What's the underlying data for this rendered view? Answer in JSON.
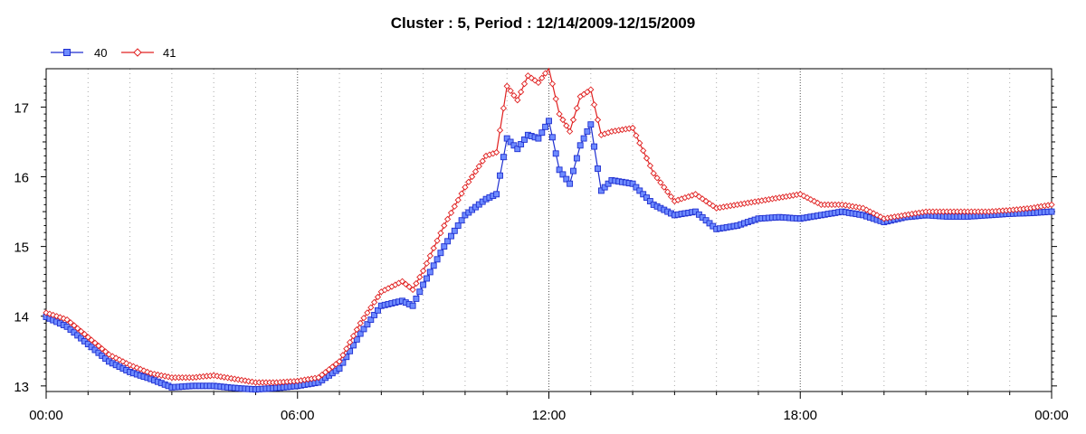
{
  "chart_data": {
    "type": "line",
    "title": "Cluster : 5, Period : 12/14/2009-12/15/2009",
    "xlabel": "",
    "ylabel": "",
    "x_unit": "hours",
    "xlim": [
      0,
      24
    ],
    "ylim": [
      12.92,
      17.55
    ],
    "x_ticks": [
      {
        "value": 0,
        "label": "00:00"
      },
      {
        "value": 6,
        "label": "06:00"
      },
      {
        "value": 12,
        "label": "12:00"
      },
      {
        "value": 18,
        "label": "18:00"
      },
      {
        "value": 24,
        "label": "00:00"
      }
    ],
    "y_ticks": [
      13,
      14,
      15,
      16,
      17
    ],
    "legend_position": "top-left",
    "grid": "dotted vertical lines every hour",
    "series": [
      {
        "name": "40",
        "color": "#1f2fd0",
        "marker": "square",
        "x": [
          0,
          0.5,
          1,
          1.5,
          2,
          2.5,
          3,
          3.5,
          4,
          4.5,
          5,
          5.5,
          6,
          6.5,
          7,
          7.5,
          8,
          8.5,
          8.75,
          9,
          9.5,
          10,
          10.5,
          10.75,
          11,
          11.25,
          11.5,
          11.75,
          12,
          12.25,
          12.5,
          12.75,
          13,
          13.25,
          13.5,
          14,
          14.5,
          15,
          15.5,
          16,
          16.5,
          17,
          17.5,
          18,
          18.5,
          19,
          19.5,
          20,
          20.5,
          21,
          21.5,
          22,
          22.5,
          23,
          23.5,
          24
        ],
        "values": [
          13.99,
          13.85,
          13.6,
          13.35,
          13.2,
          13.1,
          12.98,
          13.0,
          13.0,
          12.97,
          12.95,
          12.97,
          13.0,
          13.05,
          13.25,
          13.75,
          14.15,
          14.22,
          14.15,
          14.45,
          15.0,
          15.45,
          15.68,
          15.75,
          16.55,
          16.4,
          16.6,
          16.55,
          16.8,
          16.1,
          15.9,
          16.45,
          16.75,
          15.8,
          15.95,
          15.9,
          15.6,
          15.45,
          15.5,
          15.25,
          15.3,
          15.4,
          15.42,
          15.4,
          15.45,
          15.5,
          15.45,
          15.35,
          15.42,
          15.45,
          15.43,
          15.43,
          15.45,
          15.47,
          15.48,
          15.5
        ]
      },
      {
        "name": "41",
        "color": "#e02020",
        "marker": "diamond",
        "x": [
          0,
          0.5,
          1,
          1.5,
          2,
          2.5,
          3,
          3.5,
          4,
          4.5,
          5,
          5.5,
          6,
          6.5,
          7,
          7.5,
          8,
          8.5,
          8.75,
          9,
          9.5,
          10,
          10.5,
          10.75,
          11,
          11.25,
          11.5,
          11.75,
          12,
          12.25,
          12.5,
          12.75,
          13,
          13.25,
          13.5,
          14,
          14.5,
          15,
          15.5,
          16,
          16.5,
          17,
          17.5,
          18,
          18.5,
          19,
          19.5,
          20,
          20.5,
          21,
          21.5,
          22,
          22.5,
          23,
          23.5,
          24
        ],
        "values": [
          14.05,
          13.95,
          13.7,
          13.45,
          13.3,
          13.18,
          13.12,
          13.12,
          13.15,
          13.1,
          13.05,
          13.05,
          13.07,
          13.12,
          13.35,
          13.9,
          14.35,
          14.5,
          14.38,
          14.65,
          15.3,
          15.85,
          16.3,
          16.35,
          17.3,
          17.1,
          17.45,
          17.35,
          17.55,
          16.9,
          16.65,
          17.15,
          17.25,
          16.6,
          16.65,
          16.7,
          16.05,
          15.65,
          15.75,
          15.55,
          15.6,
          15.65,
          15.7,
          15.75,
          15.6,
          15.6,
          15.55,
          15.4,
          15.45,
          15.5,
          15.5,
          15.5,
          15.5,
          15.52,
          15.55,
          15.6
        ]
      }
    ]
  }
}
